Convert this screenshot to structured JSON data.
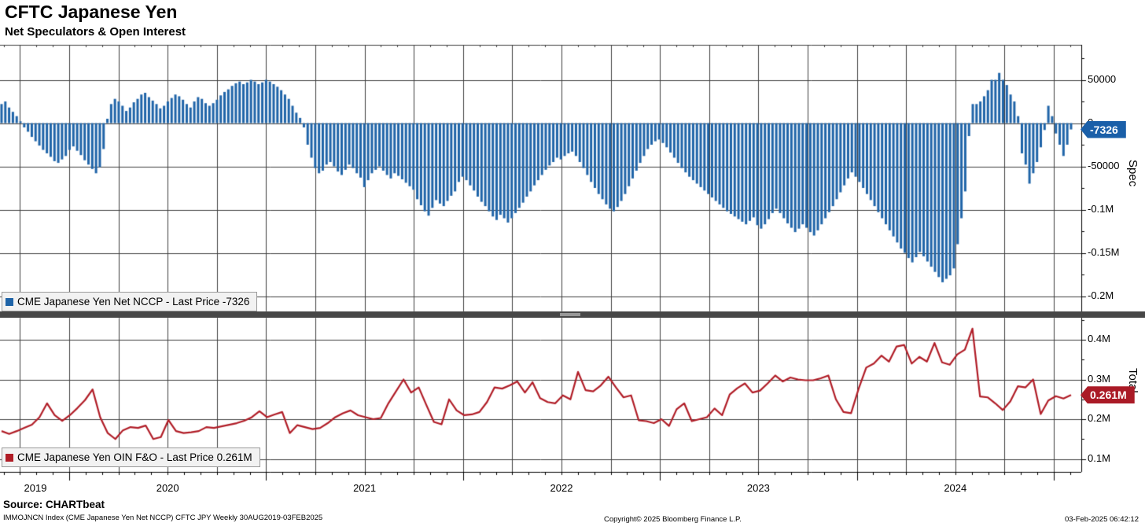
{
  "header": {
    "title": "CFTC Japanese Yen",
    "subtitle": "Net Speculators & Open Interest"
  },
  "panels": {
    "spec": {
      "axis_label": "Spec",
      "legend_label": "CME Japanese Yen Net NCCP - Last Price -7326",
      "last_price_badge": "-7326"
    },
    "total": {
      "axis_label": "Total",
      "legend_label": "CME Japanese Yen OIN F&O - Last Price 0.261M",
      "last_price_badge": "0.261M"
    }
  },
  "x_axis": {
    "year_labels": [
      "2019",
      "2020",
      "2021",
      "2022",
      "2023",
      "2024"
    ]
  },
  "footer": {
    "source": "Source: CHARTbeat",
    "index_info": "IMMOJNCN Index (CME Japanese Yen Net NCCP) CFTC JPY  Weekly 30AUG2019-03FEB2025",
    "copyright": "Copyright© 2025 Bloomberg Finance L.P.",
    "timestamp": "03-Feb-2025 06:42:12"
  },
  "colors": {
    "bar_blue": "#1f64a8",
    "badge_blue": "#1a5fa8",
    "line_red": "#b01c26",
    "badge_red": "#aa1a26",
    "grid": "#3f3f3f",
    "axis": "#000000",
    "legend_bg": "#f2f2f2"
  },
  "chart_data": [
    {
      "type": "bar",
      "name": "CME Japanese Yen Net NCCP",
      "panel": "Spec",
      "frequency": "weekly",
      "x_start": "30AUG2019",
      "x_end": "03FEB2025",
      "unit": "thousand contracts",
      "last_price": -7326,
      "ylim": [
        -218000,
        90000
      ],
      "y_ticks": [
        {
          "value": 50000,
          "label": "50000"
        },
        {
          "value": 0,
          "label": "0"
        },
        {
          "value": -50000,
          "label": "-50000"
        },
        {
          "value": -100000,
          "label": "-0.1M"
        },
        {
          "value": -150000,
          "label": "-0.15M"
        },
        {
          "value": -200000,
          "label": "-0.2M"
        }
      ],
      "values_thousands": [
        22,
        25,
        18,
        13,
        8,
        2,
        -5,
        -10,
        -16,
        -21,
        -26,
        -31,
        -35,
        -39,
        -44,
        -46,
        -42,
        -38,
        -31,
        -27,
        -32,
        -37,
        -43,
        -48,
        -53,
        -58,
        -51,
        -30,
        5,
        22,
        28,
        25,
        20,
        14,
        18,
        24,
        28,
        33,
        35,
        30,
        26,
        22,
        17,
        20,
        25,
        29,
        33,
        31,
        27,
        22,
        18,
        25,
        30,
        28,
        23,
        20,
        23,
        27,
        32,
        36,
        39,
        43,
        46,
        48,
        45,
        47,
        50,
        48,
        45,
        47,
        50,
        48,
        45,
        42,
        38,
        33,
        28,
        20,
        12,
        6,
        -5,
        -25,
        -40,
        -52,
        -58,
        -55,
        -48,
        -45,
        -50,
        -56,
        -60,
        -54,
        -48,
        -52,
        -58,
        -63,
        -74,
        -66,
        -58,
        -54,
        -50,
        -55,
        -60,
        -64,
        -58,
        -61,
        -65,
        -69,
        -73,
        -77,
        -88,
        -95,
        -102,
        -107,
        -98,
        -89,
        -93,
        -96,
        -90,
        -84,
        -79,
        -68,
        -62,
        -66,
        -72,
        -78,
        -85,
        -91,
        -96,
        -102,
        -108,
        -112,
        -106,
        -110,
        -115,
        -110,
        -104,
        -98,
        -92,
        -85,
        -79,
        -72,
        -66,
        -60,
        -54,
        -49,
        -45,
        -40,
        -42,
        -38,
        -35,
        -33,
        -38,
        -45,
        -52,
        -60,
        -68,
        -75,
        -82,
        -88,
        -94,
        -99,
        -102,
        -97,
        -90,
        -82,
        -73,
        -64,
        -55,
        -46,
        -38,
        -30,
        -25,
        -21,
        -19,
        -23,
        -28,
        -34,
        -40,
        -46,
        -52,
        -57,
        -62,
        -66,
        -70,
        -74,
        -78,
        -82,
        -86,
        -90,
        -94,
        -98,
        -102,
        -105,
        -108,
        -111,
        -114,
        -117,
        -113,
        -109,
        -118,
        -122,
        -117,
        -111,
        -104,
        -99,
        -104,
        -110,
        -116,
        -121,
        -126,
        -122,
        -117,
        -121,
        -126,
        -130,
        -124,
        -117,
        -110,
        -103,
        -96,
        -88,
        -80,
        -72,
        -64,
        -57,
        -62,
        -68,
        -75,
        -82,
        -89,
        -96,
        -103,
        -110,
        -117,
        -124,
        -131,
        -138,
        -145,
        -150,
        -156,
        -161,
        -155,
        -149,
        -154,
        -160,
        -166,
        -172,
        -178,
        -184,
        -180,
        -176,
        -168,
        -140,
        -110,
        -79,
        -15,
        22,
        22,
        25,
        31,
        38,
        50,
        50,
        58,
        50,
        44,
        33,
        25,
        8,
        -35,
        -48,
        -70,
        -58,
        -45,
        -28,
        -8,
        20,
        8,
        -12,
        -25,
        -38,
        -25,
        -7.326
      ]
    },
    {
      "type": "line",
      "name": "CME Japanese Yen OIN F&O",
      "panel": "Total",
      "frequency": "biweekly",
      "x_start": "30AUG2019",
      "x_end": "03FEB2025",
      "unit": "million contracts",
      "last_price_millions": 0.261,
      "ylim_millions": [
        0.067,
        0.455
      ],
      "y_ticks": [
        {
          "value_millions": 0.4,
          "label": "0.4M"
        },
        {
          "value_millions": 0.3,
          "label": "0.3M"
        },
        {
          "value_millions": 0.2,
          "label": "0.2M"
        },
        {
          "value_millions": 0.1,
          "label": "0.1M"
        }
      ],
      "values_millions": [
        0.17,
        0.163,
        0.17,
        0.178,
        0.186,
        0.205,
        0.24,
        0.21,
        0.196,
        0.21,
        0.228,
        0.248,
        0.275,
        0.205,
        0.165,
        0.15,
        0.172,
        0.18,
        0.178,
        0.184,
        0.15,
        0.155,
        0.198,
        0.17,
        0.165,
        0.167,
        0.17,
        0.18,
        0.178,
        0.182,
        0.186,
        0.19,
        0.196,
        0.205,
        0.22,
        0.205,
        0.212,
        0.218,
        0.165,
        0.185,
        0.18,
        0.175,
        0.178,
        0.19,
        0.205,
        0.215,
        0.222,
        0.21,
        0.205,
        0.2,
        0.203,
        0.24,
        0.27,
        0.3,
        0.267,
        0.28,
        0.236,
        0.193,
        0.187,
        0.25,
        0.222,
        0.21,
        0.212,
        0.218,
        0.243,
        0.28,
        0.277,
        0.285,
        0.295,
        0.267,
        0.293,
        0.253,
        0.243,
        0.24,
        0.26,
        0.25,
        0.319,
        0.273,
        0.27,
        0.285,
        0.307,
        0.28,
        0.255,
        0.26,
        0.197,
        0.195,
        0.19,
        0.2,
        0.183,
        0.225,
        0.24,
        0.195,
        0.2,
        0.205,
        0.227,
        0.21,
        0.262,
        0.278,
        0.29,
        0.267,
        0.272,
        0.29,
        0.31,
        0.295,
        0.305,
        0.3,
        0.298,
        0.298,
        0.303,
        0.31,
        0.25,
        0.218,
        0.215,
        0.277,
        0.33,
        0.34,
        0.36,
        0.345,
        0.383,
        0.387,
        0.34,
        0.357,
        0.345,
        0.392,
        0.343,
        0.337,
        0.363,
        0.375,
        0.428,
        0.257,
        0.255,
        0.24,
        0.223,
        0.245,
        0.283,
        0.28,
        0.3,
        0.213,
        0.247,
        0.258,
        0.252,
        0.261
      ]
    }
  ]
}
